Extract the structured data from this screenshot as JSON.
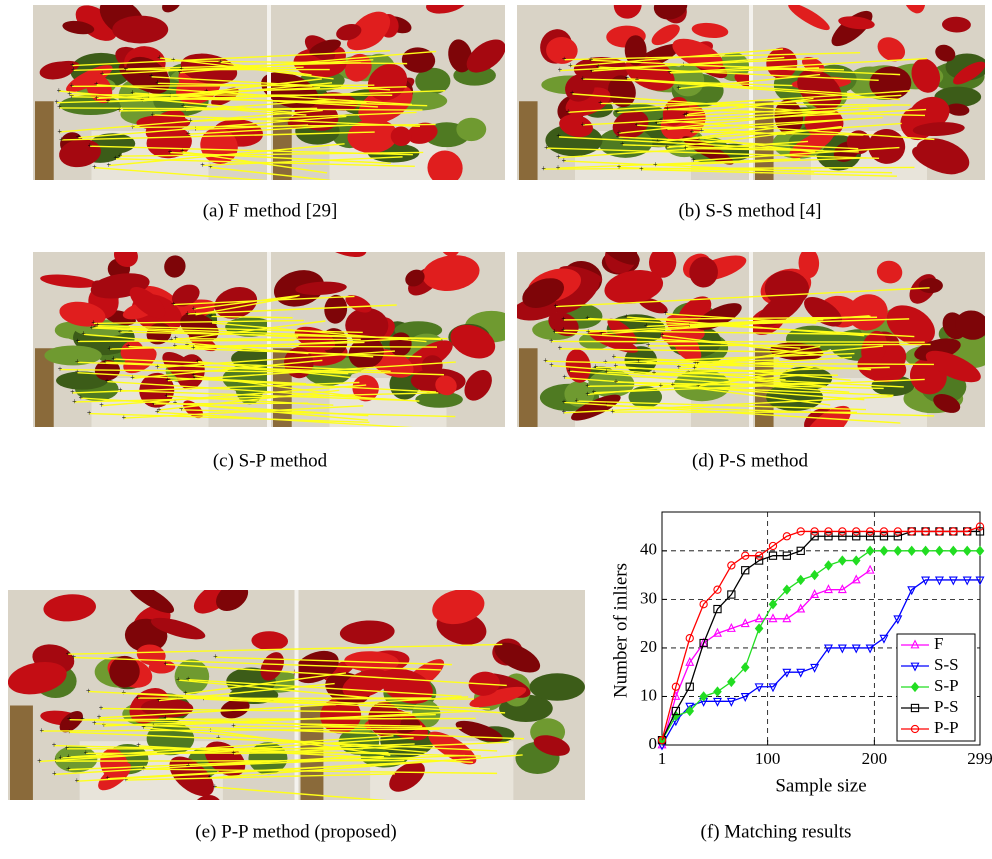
{
  "panels": [
    {
      "caption": "(a) F method [29]"
    },
    {
      "caption": "(b) S-S method [4]"
    },
    {
      "caption": "(c) S-P method"
    },
    {
      "caption": "(d) P-S method"
    },
    {
      "caption": "(e) P-P method (proposed)"
    },
    {
      "caption": "(f) Matching results"
    }
  ],
  "chart_data": {
    "type": "line",
    "x_label": "Sample size",
    "y_label": "Number of inliers",
    "x": [
      1,
      14,
      27,
      40,
      53,
      66,
      79,
      92,
      105,
      118,
      131,
      144,
      157,
      170,
      183,
      196,
      209,
      222,
      235,
      248,
      261,
      274,
      287,
      299
    ],
    "xlim": [
      1,
      299
    ],
    "xticks": [
      1,
      100,
      200,
      299
    ],
    "ylim": [
      0,
      48
    ],
    "yticks": [
      0,
      10,
      20,
      30,
      40
    ],
    "grid": true,
    "legend": "lower right",
    "series": [
      {
        "name": "F",
        "color": "#ff00ff",
        "marker": "triangle-up",
        "values": [
          0,
          10,
          17,
          21,
          23,
          24,
          25,
          26,
          26,
          26,
          28,
          31,
          32,
          32,
          34,
          36,
          null,
          null,
          null,
          null,
          null,
          null,
          null,
          null
        ]
      },
      {
        "name": "S-S",
        "color": "#0000ff",
        "marker": "triangle-down",
        "values": [
          0,
          5,
          8,
          9,
          9,
          9,
          10,
          12,
          12,
          15,
          15,
          16,
          20,
          20,
          20,
          20,
          22,
          26,
          32,
          34,
          34,
          34,
          34,
          34
        ]
      },
      {
        "name": "S-P",
        "color": "#22dd22",
        "marker": "diamond",
        "values": [
          1,
          6,
          7,
          10,
          11,
          13,
          16,
          24,
          29,
          32,
          34,
          35,
          37,
          38,
          38,
          40,
          40,
          40,
          40,
          40,
          40,
          40,
          40,
          40
        ]
      },
      {
        "name": "P-S",
        "color": "#000000",
        "marker": "square",
        "values": [
          1,
          7,
          12,
          21,
          28,
          31,
          36,
          38,
          39,
          39,
          40,
          43,
          43,
          43,
          43,
          43,
          43,
          43,
          44,
          44,
          44,
          44,
          44,
          44
        ]
      },
      {
        "name": "P-P",
        "color": "#ff0000",
        "marker": "circle",
        "values": [
          1,
          12,
          22,
          29,
          32,
          37,
          39,
          39,
          41,
          43,
          44,
          44,
          44,
          44,
          44,
          44,
          44,
          44,
          44,
          44,
          44,
          44,
          44,
          45
        ]
      }
    ]
  }
}
